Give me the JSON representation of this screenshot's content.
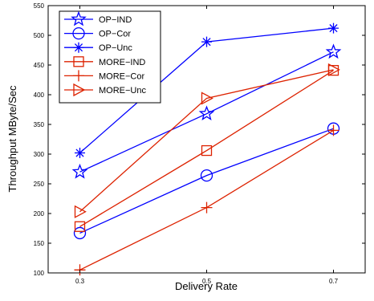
{
  "chart_data": {
    "type": "line",
    "title": "",
    "xlabel": "Delivery Rate",
    "ylabel": "Throughput MByte/Sec",
    "x": [
      0.3,
      0.5,
      0.7
    ],
    "xlim": [
      0.25,
      0.75
    ],
    "ylim": [
      100,
      550
    ],
    "xticks": [
      0.3,
      0.5,
      0.7
    ],
    "xtick_labels": [
      "0.3",
      "0.5",
      "0.7"
    ],
    "yticks": [
      100,
      150,
      200,
      250,
      300,
      350,
      400,
      450,
      500,
      550
    ],
    "ytick_labels": [
      "100",
      "150",
      "200",
      "250",
      "300",
      "350",
      "400",
      "450",
      "500",
      "550"
    ],
    "grid": false,
    "legend_position": "top-left",
    "series": [
      {
        "name": "OP−IND",
        "values": [
          270,
          368,
          472
        ],
        "color": "#0000ff",
        "marker": "star"
      },
      {
        "name": "OP−Cor",
        "values": [
          167,
          264,
          343
        ],
        "color": "#0000ff",
        "marker": "circle"
      },
      {
        "name": "OP−Unc",
        "values": [
          302,
          489,
          512
        ],
        "color": "#0000ff",
        "marker": "asterisk"
      },
      {
        "name": "MORE−IND",
        "values": [
          178,
          306,
          441
        ],
        "color": "#dd2200",
        "marker": "square"
      },
      {
        "name": "MORE−Cor",
        "values": [
          105,
          210,
          340
        ],
        "color": "#dd2200",
        "marker": "plus"
      },
      {
        "name": "MORE−Unc",
        "values": [
          203,
          394,
          442
        ],
        "color": "#dd2200",
        "marker": "triangle-right"
      }
    ]
  }
}
